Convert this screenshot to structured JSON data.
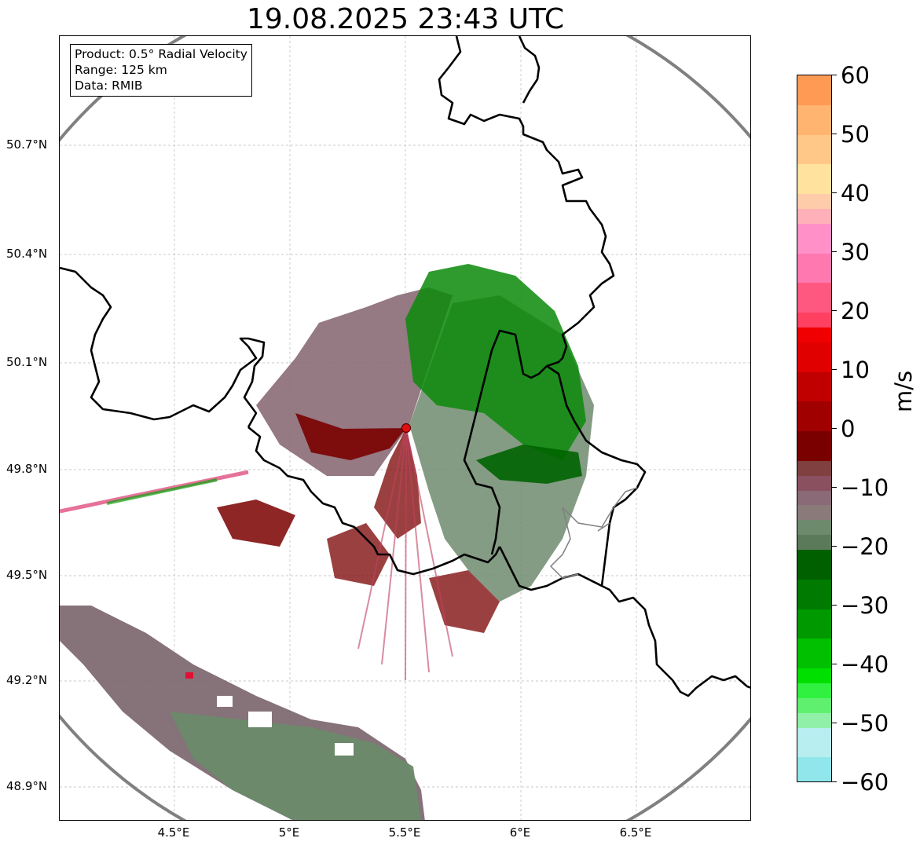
{
  "title": "19.08.2025 23:43 UTC",
  "info": {
    "product": "Product: 0.5° Radial Velocity",
    "range": "Range: 125 km",
    "source": "Data: RMIB"
  },
  "lat_labels": [
    "50.7°N",
    "50.4°N",
    "50.1°N",
    "49.8°N",
    "49.5°N",
    "49.2°N",
    "48.9°N"
  ],
  "lon_labels": [
    "4.5°E",
    "5°E",
    "5.5°E",
    "6°E",
    "6.5°E"
  ],
  "colorbar": {
    "unit": "m/s",
    "ticks": [
      "60",
      "50",
      "40",
      "30",
      "20",
      "10",
      "0",
      "−10",
      "−20",
      "−30",
      "−40",
      "−50",
      "−60"
    ],
    "vmin": -60,
    "vmax": 60
  },
  "chart_data": {
    "type": "heatmap",
    "title": "19.08.2025 23:43 UTC",
    "variable": "0.5° Radial Velocity",
    "unit": "m/s",
    "range_km": 125,
    "value_range": [
      -60,
      60
    ],
    "extent_lon": [
      4.0,
      7.0
    ],
    "extent_lat": [
      48.8,
      50.99
    ],
    "radar_site": {
      "lon": 5.505,
      "lat": 49.914
    },
    "grid": true
  },
  "colors": {
    "radar_site": "#e01010",
    "range_ring": "#808080",
    "border": "#000000"
  }
}
